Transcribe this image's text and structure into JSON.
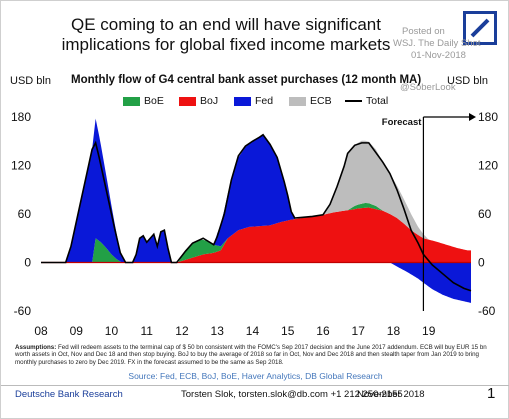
{
  "header": {
    "title_line1": "QE coming to an end will have significant",
    "title_line2": "implications for global fixed income markets"
  },
  "watermark": {
    "posted_on": "Posted on",
    "source": "WSJ. The Daily Shot",
    "date": "01-Nov-2018",
    "handle": "@SoberLook"
  },
  "chart_data": {
    "type": "area",
    "title": "Monthly flow of G4 central bank asset purchases (12 month MA)",
    "yunit_left": "USD bln",
    "yunit_right": "USD bln",
    "ylim": [
      -60,
      180
    ],
    "yticks": [
      "180",
      "120",
      "60",
      "0",
      "-60"
    ],
    "ytick_values": [
      180,
      120,
      60,
      0,
      -60
    ],
    "xlim": [
      2008,
      2020.2
    ],
    "xticks": [
      "08",
      "09",
      "10",
      "11",
      "12",
      "13",
      "14",
      "15",
      "16",
      "17",
      "18",
      "19"
    ],
    "xtick_values": [
      2008,
      2009,
      2010,
      2011,
      2012,
      2013,
      2014,
      2015,
      2016,
      2017,
      2018,
      2019
    ],
    "forecast_start": 2018.85,
    "forecast_label": "Forecast",
    "stack_order": [
      "BoJ",
      "BoE",
      "Fed",
      "ECB"
    ],
    "series": [
      {
        "name": "BoE",
        "color": "#22a046",
        "points": [
          [
            2009.2,
            0
          ],
          [
            2009.45,
            0
          ],
          [
            2009.55,
            30
          ],
          [
            2009.7,
            25
          ],
          [
            2009.85,
            18
          ],
          [
            2010.0,
            10
          ],
          [
            2010.15,
            4
          ],
          [
            2010.3,
            0
          ],
          [
            2011.9,
            0
          ],
          [
            2012.1,
            12
          ],
          [
            2012.3,
            18
          ],
          [
            2012.5,
            20
          ],
          [
            2012.7,
            16
          ],
          [
            2012.9,
            10
          ],
          [
            2013.1,
            5
          ],
          [
            2013.3,
            0
          ],
          [
            2016.7,
            0
          ],
          [
            2016.9,
            4
          ],
          [
            2017.2,
            6
          ],
          [
            2017.5,
            4
          ],
          [
            2017.7,
            0
          ],
          [
            2020.2,
            0
          ]
        ]
      },
      {
        "name": "BoJ",
        "color": "#ee1111",
        "points": [
          [
            2008.0,
            0
          ],
          [
            2011.85,
            0
          ],
          [
            2012.0,
            2
          ],
          [
            2012.3,
            6
          ],
          [
            2012.6,
            10
          ],
          [
            2012.9,
            12
          ],
          [
            2013.1,
            15
          ],
          [
            2013.3,
            30
          ],
          [
            2013.6,
            40
          ],
          [
            2013.9,
            44
          ],
          [
            2014.2,
            45
          ],
          [
            2014.5,
            46
          ],
          [
            2014.8,
            50
          ],
          [
            2015.1,
            53
          ],
          [
            2015.4,
            55
          ],
          [
            2015.7,
            57
          ],
          [
            2016.0,
            59
          ],
          [
            2016.3,
            62
          ],
          [
            2016.6,
            64
          ],
          [
            2016.9,
            66
          ],
          [
            2017.0,
            67
          ],
          [
            2017.3,
            68
          ],
          [
            2017.5,
            66
          ],
          [
            2017.7,
            64
          ],
          [
            2017.9,
            60
          ],
          [
            2018.1,
            55
          ],
          [
            2018.3,
            48
          ],
          [
            2018.5,
            40
          ],
          [
            2018.7,
            34
          ],
          [
            2018.85,
            30
          ],
          [
            2019.2,
            26
          ],
          [
            2019.5,
            22
          ],
          [
            2019.8,
            18
          ],
          [
            2020.1,
            15
          ],
          [
            2020.2,
            15
          ]
        ]
      },
      {
        "name": "Fed",
        "color": "#0a18d8",
        "points": [
          [
            2008.0,
            0
          ],
          [
            2008.7,
            0
          ],
          [
            2008.85,
            20
          ],
          [
            2009.0,
            50
          ],
          [
            2009.15,
            80
          ],
          [
            2009.3,
            110
          ],
          [
            2009.45,
            140
          ],
          [
            2009.55,
            148
          ],
          [
            2009.65,
            130
          ],
          [
            2009.8,
            100
          ],
          [
            2009.95,
            70
          ],
          [
            2010.1,
            40
          ],
          [
            2010.25,
            12
          ],
          [
            2010.4,
            0
          ],
          [
            2010.6,
            0
          ],
          [
            2010.7,
            10
          ],
          [
            2010.8,
            30
          ],
          [
            2010.9,
            33
          ],
          [
            2011.0,
            25
          ],
          [
            2011.1,
            30
          ],
          [
            2011.2,
            35
          ],
          [
            2011.3,
            20
          ],
          [
            2011.4,
            38
          ],
          [
            2011.5,
            40
          ],
          [
            2011.6,
            18
          ],
          [
            2011.7,
            0
          ],
          [
            2012.9,
            0
          ],
          [
            2013.0,
            15
          ],
          [
            2013.2,
            40
          ],
          [
            2013.4,
            70
          ],
          [
            2013.6,
            90
          ],
          [
            2013.8,
            100
          ],
          [
            2014.0,
            105
          ],
          [
            2014.2,
            110
          ],
          [
            2014.3,
            112
          ],
          [
            2014.5,
            100
          ],
          [
            2014.7,
            80
          ],
          [
            2014.9,
            50
          ],
          [
            2015.0,
            30
          ],
          [
            2015.1,
            10
          ],
          [
            2015.2,
            0
          ],
          [
            2017.9,
            0
          ],
          [
            2018.1,
            -5
          ],
          [
            2018.4,
            -12
          ],
          [
            2018.7,
            -20
          ],
          [
            2018.85,
            -25
          ],
          [
            2019.1,
            -33
          ],
          [
            2019.4,
            -40
          ],
          [
            2019.7,
            -45
          ],
          [
            2020.0,
            -48
          ],
          [
            2020.2,
            -50
          ]
        ]
      },
      {
        "name": "ECB",
        "color": "#bdbdbd",
        "points": [
          [
            2008.0,
            0
          ],
          [
            2016.0,
            0
          ],
          [
            2016.2,
            10
          ],
          [
            2016.4,
            30
          ],
          [
            2016.6,
            55
          ],
          [
            2016.7,
            70
          ],
          [
            2016.9,
            75
          ],
          [
            2017.1,
            78
          ],
          [
            2017.3,
            76
          ],
          [
            2017.5,
            70
          ],
          [
            2017.7,
            60
          ],
          [
            2017.9,
            50
          ],
          [
            2018.1,
            40
          ],
          [
            2018.3,
            30
          ],
          [
            2018.5,
            20
          ],
          [
            2018.7,
            10
          ],
          [
            2018.85,
            5
          ],
          [
            2019.0,
            0
          ],
          [
            2020.2,
            0
          ]
        ]
      }
    ],
    "total_line": {
      "name": "Total",
      "color": "#000000",
      "points": [
        [
          2008.0,
          0
        ],
        [
          2008.7,
          0
        ],
        [
          2008.85,
          20
        ],
        [
          2009.0,
          50
        ],
        [
          2009.15,
          80
        ],
        [
          2009.3,
          110
        ],
        [
          2009.45,
          140
        ],
        [
          2009.55,
          148
        ],
        [
          2009.65,
          130
        ],
        [
          2009.8,
          100
        ],
        [
          2009.95,
          70
        ],
        [
          2010.1,
          40
        ],
        [
          2010.25,
          12
        ],
        [
          2010.4,
          0
        ],
        [
          2010.6,
          0
        ],
        [
          2010.7,
          10
        ],
        [
          2010.8,
          30
        ],
        [
          2010.9,
          33
        ],
        [
          2011.0,
          25
        ],
        [
          2011.1,
          30
        ],
        [
          2011.2,
          35
        ],
        [
          2011.3,
          20
        ],
        [
          2011.4,
          38
        ],
        [
          2011.5,
          40
        ],
        [
          2011.6,
          18
        ],
        [
          2011.7,
          0
        ],
        [
          2011.85,
          0
        ],
        [
          2012.1,
          14
        ],
        [
          2012.3,
          24
        ],
        [
          2012.6,
          30
        ],
        [
          2012.9,
          22
        ],
        [
          2013.0,
          32
        ],
        [
          2013.2,
          60
        ],
        [
          2013.4,
          102
        ],
        [
          2013.6,
          132
        ],
        [
          2013.8,
          144
        ],
        [
          2014.0,
          150
        ],
        [
          2014.2,
          155
        ],
        [
          2014.3,
          158
        ],
        [
          2014.5,
          146
        ],
        [
          2014.7,
          130
        ],
        [
          2014.9,
          100
        ],
        [
          2015.0,
          83
        ],
        [
          2015.1,
          63
        ],
        [
          2015.2,
          55
        ],
        [
          2015.7,
          57
        ],
        [
          2016.0,
          59
        ],
        [
          2016.2,
          72
        ],
        [
          2016.4,
          94
        ],
        [
          2016.6,
          119
        ],
        [
          2016.7,
          135
        ],
        [
          2016.9,
          145
        ],
        [
          2017.1,
          148
        ],
        [
          2017.3,
          148
        ],
        [
          2017.5,
          136
        ],
        [
          2017.7,
          124
        ],
        [
          2017.9,
          110
        ],
        [
          2018.1,
          90
        ],
        [
          2018.3,
          66
        ],
        [
          2018.5,
          40
        ],
        [
          2018.7,
          24
        ],
        [
          2018.85,
          10
        ],
        [
          2019.1,
          -3
        ],
        [
          2019.4,
          -14
        ],
        [
          2019.7,
          -25
        ],
        [
          2020.0,
          -32
        ],
        [
          2020.2,
          -35
        ]
      ]
    }
  },
  "notes": {
    "assumptions_label": "Assumptions:",
    "assumptions_text": "Fed will redeem assets to the terminal cap of $ 50 bn consistent with the FOMC's Sep 2017 decision and the June 2017 addendum. ECB will buy EUR 15 bn worth assets in Oct, Nov and Dec 18 and then stop buying. BoJ to buy the average of 2018 so far in Oct, Nov and Dec 2018 and then stealth taper from Jan 2019 to bring monthly purchases to zero by Dec 2019. FX in the forecast assumed to be the same as Sep 2018.",
    "source": "Source: Fed, ECB, BoJ, BoE, Haver Analytics, DB Global Research"
  },
  "footer": {
    "brand": "Deutsche Bank Research",
    "contact": "Torsten Slok, torsten.slok@db.com +1 212 250-2155",
    "date": "November 2018",
    "page": "1"
  }
}
